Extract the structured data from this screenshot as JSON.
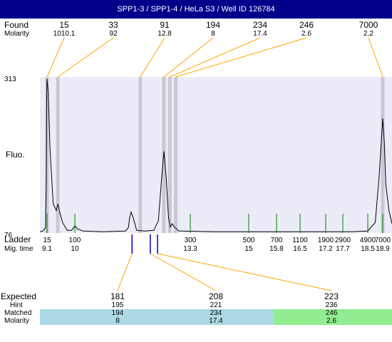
{
  "title": "SPP1-3 / SPP1-4 / HeLa S3 / Well ID 126784",
  "labels": {
    "found": "Found",
    "molarity": "Molarity",
    "fluo": "Fluo.",
    "ladder": "Ladder",
    "mig_time": "Mig. time",
    "expected": "Expected",
    "hint": "Hint",
    "matched": "Matched",
    "molarity_bottom": "Molarity"
  },
  "colors": {
    "header_bg": "#00008b",
    "plot_bg": "#ececf8",
    "band": "#c8c8d2",
    "found_line": "#ffa500",
    "ladder_tick": "#008000",
    "expected_tick": "#0000cd",
    "matched_blue": "#add8e6",
    "matched_green": "#90ee90"
  },
  "chart_data": {
    "type": "line",
    "title": "SPP1-3 / SPP1-4 / HeLa S3 / Well ID 126784",
    "ylabel": "Fluo.",
    "xlabel": "Ladder",
    "ylim": [
      76,
      313
    ],
    "y_ticks": [
      "313",
      "76"
    ],
    "found": [
      {
        "size": "15",
        "molarity": "1010.1",
        "time": 9.1
      },
      {
        "size": "33",
        "molarity": "92",
        "time": 9.45
      },
      {
        "size": "91",
        "molarity": "12.8",
        "time": 12.2
      },
      {
        "size": "194",
        "molarity": "8",
        "time": 12.72
      },
      {
        "size": "234",
        "molarity": "17.4",
        "time": 12.85
      },
      {
        "size": "246",
        "molarity": "2.6",
        "time": 12.98
      },
      {
        "size": "7000",
        "molarity": "2.2",
        "time": 18.9
      }
    ],
    "ladder": [
      {
        "size": "15",
        "time": "9.1"
      },
      {
        "size": "100",
        "time": "10"
      },
      {
        "size": "300",
        "time": "13.3"
      },
      {
        "size": "500",
        "time": "15"
      },
      {
        "size": "700",
        "time": "15.8"
      },
      {
        "size": "1100",
        "time": "16.5"
      },
      {
        "size": "1900",
        "time": "17.2"
      },
      {
        "size": "2900",
        "time": "17.7"
      },
      {
        "size": "4900",
        "time": "18.5"
      },
      {
        "size": "7000",
        "time": "18.9"
      }
    ],
    "expected": [
      {
        "size": "181",
        "hint": "195",
        "matched": "194",
        "molarity": "8",
        "time": 12.02
      },
      {
        "size": "208",
        "hint": "221",
        "matched": "234",
        "molarity": "17.4",
        "time": 12.42
      },
      {
        "size": "223",
        "hint": "236",
        "matched": "246",
        "molarity": "2.6",
        "time": 12.58
      }
    ],
    "trace": [
      [
        8.2,
        78
      ],
      [
        8.6,
        79
      ],
      [
        8.9,
        84
      ],
      [
        9.0,
        150
      ],
      [
        9.06,
        290
      ],
      [
        9.1,
        310
      ],
      [
        9.14,
        290
      ],
      [
        9.2,
        200
      ],
      [
        9.3,
        120
      ],
      [
        9.4,
        110
      ],
      [
        9.45,
        120
      ],
      [
        9.5,
        110
      ],
      [
        9.6,
        92
      ],
      [
        9.75,
        80
      ],
      [
        9.9,
        80
      ],
      [
        10.0,
        87
      ],
      [
        10.1,
        82
      ],
      [
        10.3,
        79
      ],
      [
        11.0,
        78
      ],
      [
        11.8,
        79
      ],
      [
        11.9,
        84
      ],
      [
        11.95,
        100
      ],
      [
        12.0,
        108
      ],
      [
        12.05,
        98
      ],
      [
        12.12,
        80
      ],
      [
        12.3,
        79
      ],
      [
        12.5,
        80
      ],
      [
        12.6,
        95
      ],
      [
        12.66,
        150
      ],
      [
        12.72,
        200
      ],
      [
        12.77,
        160
      ],
      [
        12.82,
        100
      ],
      [
        12.86,
        85
      ],
      [
        12.9,
        90
      ],
      [
        12.95,
        85
      ],
      [
        13.05,
        79
      ],
      [
        14.0,
        78
      ],
      [
        15.5,
        78
      ],
      [
        17.0,
        78
      ],
      [
        18.0,
        78
      ],
      [
        18.5,
        79
      ],
      [
        18.7,
        92
      ],
      [
        18.8,
        160
      ],
      [
        18.9,
        250
      ],
      [
        18.95,
        215
      ],
      [
        19.0,
        150
      ],
      [
        19.1,
        110
      ],
      [
        19.2,
        90
      ]
    ]
  }
}
